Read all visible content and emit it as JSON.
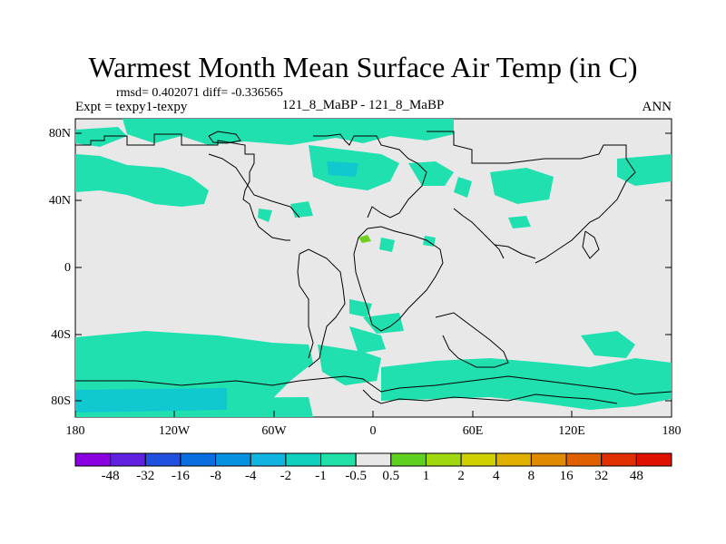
{
  "title": "Warmest Month Mean Surface Air Temp (in C)",
  "stats": "rmsd= 0.402071  diff= -0.336565",
  "expt": "Expt = texpy1-texpy",
  "center_label": "121_8_MaBP - 121_8_MaBP",
  "period": "ANN",
  "lat_labels": [
    "80N",
    "40N",
    "0",
    "40S",
    "80S"
  ],
  "lon_labels": [
    "180",
    "120W",
    "60W",
    "0",
    "60E",
    "120E",
    "180"
  ],
  "colorbar": {
    "labels": [
      "-48",
      "-32",
      "-16",
      "-8",
      "-4",
      "-2",
      "-1",
      "-0.5",
      "0.5",
      "1",
      "2",
      "4",
      "8",
      "16",
      "32",
      "48"
    ],
    "colors": [
      "#8a00e0",
      "#6020e0",
      "#2050e0",
      "#0a6ee0",
      "#0890e0",
      "#10b4e0",
      "#10d0c0",
      "#20e0a8",
      "#e8e8e8",
      "#60d020",
      "#a0d810",
      "#d0d000",
      "#e0b000",
      "#e08a00",
      "#e06000",
      "#e03000",
      "#e01000"
    ]
  },
  "map_colors": {
    "background": "#e8e8e8",
    "cool": "#20e0b0",
    "cooler": "#10c8d0",
    "warm": "#70d020",
    "coast": "#000000"
  }
}
